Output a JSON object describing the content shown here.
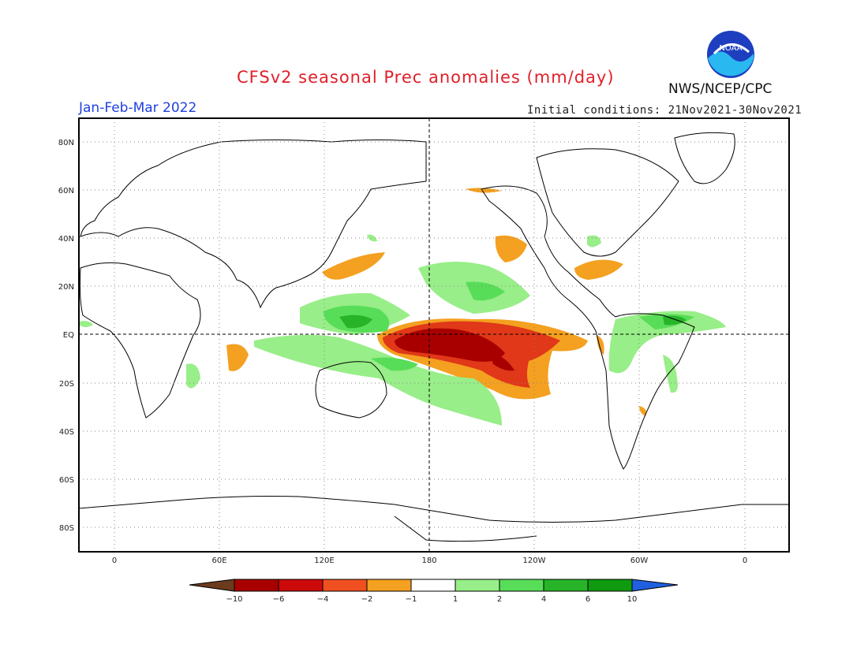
{
  "header": {
    "title": "CFSv2 seasonal Prec anomalies (mm/day)",
    "period": "Jan-Feb-Mar 2022",
    "initial_conditions": "Initial conditions: 21Nov2021-30Nov2021",
    "agency": "NWS/NCEP/CPC",
    "logo_text": "NOAA"
  },
  "map": {
    "lat_labels": [
      "80N",
      "60N",
      "40N",
      "20N",
      "EQ",
      "20S",
      "40S",
      "60S",
      "80S"
    ],
    "lon_labels": [
      "0",
      "60E",
      "120E",
      "180",
      "120W",
      "60W",
      "0"
    ]
  },
  "legend": {
    "labels": [
      "-10",
      "-6",
      "-4",
      "-2",
      "-1",
      "1",
      "2",
      "4",
      "6",
      "10"
    ],
    "colors": [
      "#6b3b1d",
      "#a80000",
      "#cc0a0a",
      "#f05020",
      "#f4a020",
      "#ffffff",
      "#98ee88",
      "#58dd58",
      "#28b428",
      "#109a10",
      "#2060e0"
    ]
  },
  "colors": {
    "title": "#e0202a",
    "period": "#2040e0",
    "dry_strong": "#a80000",
    "dry_mid": "#e03818",
    "dry": "#f4a020",
    "wet": "#98ee88",
    "wet_mid": "#58dd58",
    "wet_strong": "#28b428"
  }
}
